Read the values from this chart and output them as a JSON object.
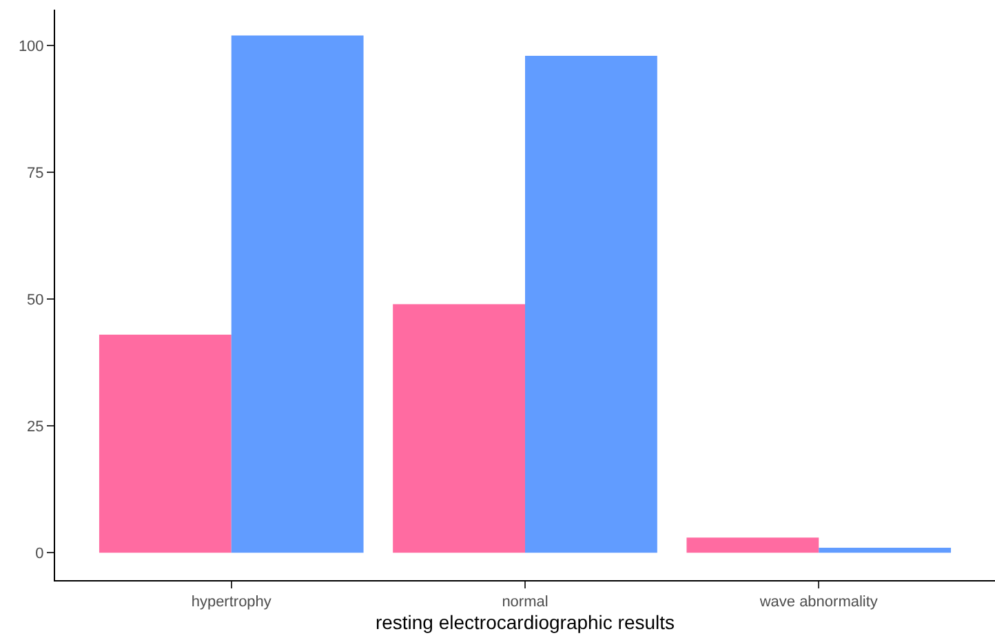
{
  "chart_data": {
    "type": "bar",
    "xlabel": "resting electrocardiographic results",
    "categories": [
      "hypertrophy",
      "normal",
      "wave abnormality"
    ],
    "series": [
      {
        "color": "#ff6ba1",
        "values": [
          43,
          49,
          3
        ]
      },
      {
        "color": "#619cff",
        "values": [
          102,
          98,
          1
        ]
      }
    ],
    "ylim": [
      -5.4,
      107.1
    ],
    "yticks": [
      0,
      25,
      50,
      75,
      100
    ]
  }
}
